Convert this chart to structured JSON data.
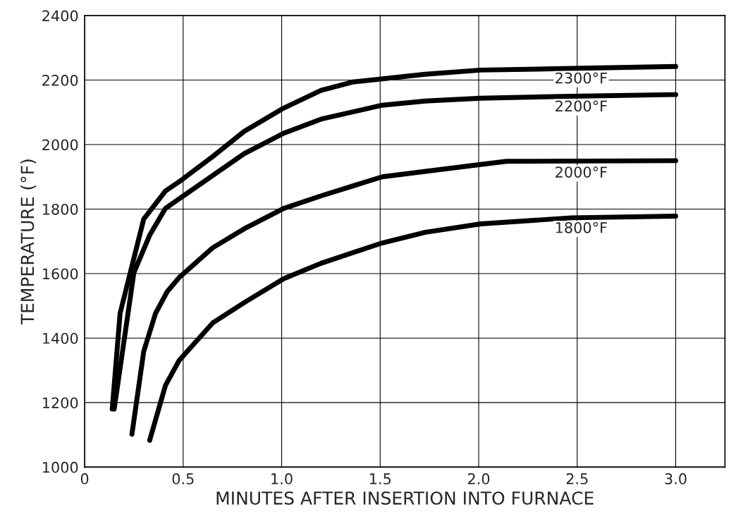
{
  "chart_data": {
    "type": "line",
    "xlabel": "MINUTES AFTER INSERTION INTO FURNACE",
    "ylabel": "TEMPERATURE (°F)",
    "xlim": [
      0,
      3.25
    ],
    "xticks": [
      0,
      {
        "value": 0.5,
        "label": "0.5"
      },
      {
        "value": 1.0,
        "label": "1.0"
      },
      {
        "value": 1.5,
        "label": "1.5"
      },
      {
        "value": 2.0,
        "label": "2.0"
      },
      {
        "value": 2.5,
        "label": "2.5"
      },
      {
        "value": 3.0,
        "label": "3.0"
      }
    ],
    "ylim": [
      1000,
      2400
    ],
    "yticks": [
      1000,
      1200,
      1400,
      1600,
      1800,
      2000,
      2200,
      2400
    ],
    "grid": true,
    "marker": "none",
    "line_style": "solid",
    "series": [
      {
        "name": "2300°F",
        "color": "#000000",
        "x": [
          0.14,
          0.18,
          0.24,
          0.3,
          0.41,
          0.48,
          0.65,
          0.81,
          1.01,
          1.2,
          1.36,
          1.73,
          2.01,
          2.47,
          3.0
        ],
        "values": [
          1180,
          1477,
          1623,
          1769,
          1856,
          1885,
          1963,
          2041,
          2113,
          2168,
          2194,
          2218,
          2231,
          2236,
          2242
        ]
      },
      {
        "name": "2200°F",
        "color": "#000000",
        "x": [
          0.15,
          0.25,
          0.33,
          0.41,
          0.48,
          0.65,
          0.81,
          1.01,
          1.2,
          1.51,
          1.73,
          2.01,
          2.47,
          3.0
        ],
        "values": [
          1180,
          1603,
          1719,
          1802,
          1832,
          1904,
          1972,
          2035,
          2079,
          2122,
          2135,
          2144,
          2150,
          2155
        ]
      },
      {
        "name": "2000°F",
        "color": "#000000",
        "x": [
          0.24,
          0.3,
          0.36,
          0.42,
          0.48,
          0.65,
          0.81,
          1.01,
          1.2,
          1.51,
          1.73,
          2.14,
          3.0
        ],
        "values": [
          1102,
          1359,
          1477,
          1545,
          1588,
          1680,
          1739,
          1802,
          1841,
          1900,
          1917,
          1948,
          1950
        ]
      },
      {
        "name": "1800°F",
        "color": "#000000",
        "x": [
          0.33,
          0.41,
          0.48,
          0.65,
          0.81,
          1.01,
          1.2,
          1.51,
          1.73,
          2.01,
          2.47,
          3.0
        ],
        "values": [
          1083,
          1253,
          1331,
          1447,
          1510,
          1584,
          1632,
          1695,
          1728,
          1754,
          1773,
          1778
        ]
      }
    ]
  }
}
